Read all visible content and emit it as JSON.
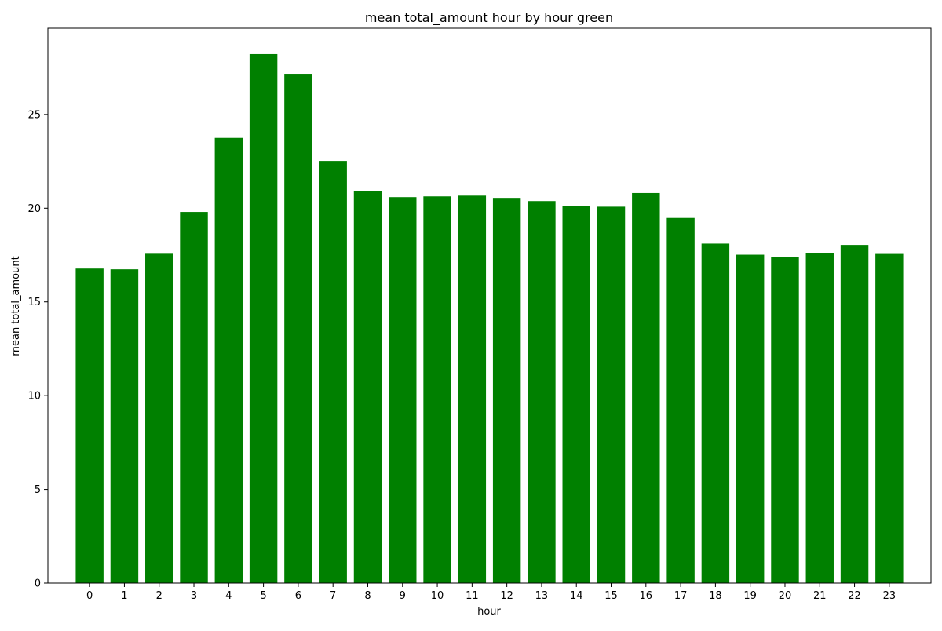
{
  "chart_data": {
    "type": "bar",
    "title": "mean total_amount hour by hour green",
    "xlabel": "hour",
    "ylabel": "mean total_amount",
    "categories": [
      "0",
      "1",
      "2",
      "3",
      "4",
      "5",
      "6",
      "7",
      "8",
      "9",
      "10",
      "11",
      "12",
      "13",
      "14",
      "15",
      "16",
      "17",
      "18",
      "19",
      "20",
      "21",
      "22",
      "23"
    ],
    "values": [
      16.78,
      16.74,
      17.57,
      19.8,
      23.75,
      28.22,
      27.17,
      22.52,
      20.92,
      20.59,
      20.63,
      20.67,
      20.55,
      20.38,
      20.11,
      20.08,
      20.81,
      19.48,
      18.11,
      17.52,
      17.38,
      17.61,
      18.04,
      17.56
    ],
    "ylim": [
      0,
      29.6
    ],
    "yticks": [
      0,
      5,
      10,
      15,
      20,
      25
    ],
    "bar_color": "#008000",
    "grid": false,
    "legend": false
  }
}
